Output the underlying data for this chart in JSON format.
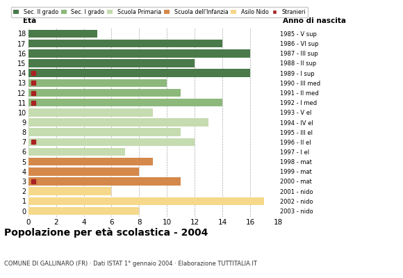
{
  "ages": [
    18,
    17,
    16,
    15,
    14,
    13,
    12,
    11,
    10,
    9,
    8,
    7,
    6,
    5,
    4,
    3,
    2,
    1,
    0
  ],
  "anno": [
    "1985 - V sup",
    "1986 - VI sup",
    "1987 - III sup",
    "1988 - II sup",
    "1989 - I sup",
    "1990 - III med",
    "1991 - II med",
    "1992 - I med",
    "1993 - V el",
    "1994 - IV el",
    "1995 - III el",
    "1996 - II el",
    "1997 - I el",
    "1998 - mat",
    "1999 - mat",
    "2000 - mat",
    "2001 - nido",
    "2002 - nido",
    "2003 - nido"
  ],
  "bar_values": [
    5,
    14,
    16,
    12,
    16,
    10,
    11,
    14,
    9,
    13,
    11,
    12,
    7,
    9,
    8,
    11,
    6,
    17,
    8
  ],
  "stranieri": [
    0,
    0,
    0,
    0,
    1,
    1,
    1,
    1,
    0,
    0,
    0,
    2,
    0,
    0,
    0,
    1,
    0,
    0,
    0
  ],
  "categories": {
    "Sec. II grado": {
      "ages": [
        14,
        15,
        16,
        17,
        18
      ],
      "color": "#4a7a4a"
    },
    "Sec. I grado": {
      "ages": [
        11,
        12,
        13
      ],
      "color": "#8cb87c"
    },
    "Scuola Primaria": {
      "ages": [
        6,
        7,
        8,
        9,
        10
      ],
      "color": "#c5dbb0"
    },
    "Scuola dell'Infanzia": {
      "ages": [
        3,
        4,
        5
      ],
      "color": "#d4884a"
    },
    "Asilo Nido": {
      "ages": [
        0,
        1,
        2
      ],
      "color": "#f5d88a"
    }
  },
  "stranieri_color": "#aa2222",
  "title": "Popolazione per età scolastica - 2004",
  "subtitle": "COMUNE DI GALLINARO (FR) · Dati ISTAT 1° gennaio 2004 · Elaborazione TUTTITALIA.IT",
  "xlabel_left": "Età",
  "xlabel_right": "Anno di nascita",
  "xlim": [
    0,
    18
  ],
  "xticks": [
    0,
    2,
    4,
    6,
    8,
    10,
    12,
    14,
    16,
    18
  ],
  "background_color": "#ffffff",
  "grid_color": "#aaaaaa",
  "bar_height": 0.82
}
